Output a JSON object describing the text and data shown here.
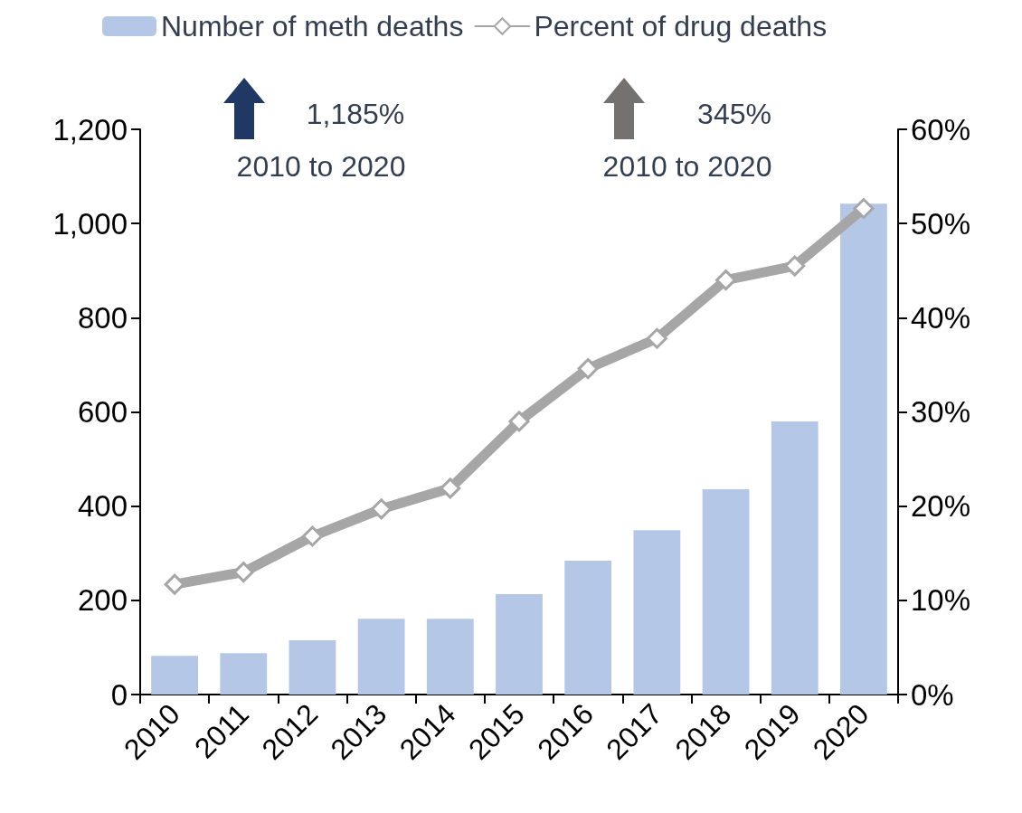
{
  "chart_data": {
    "type": "bar",
    "categories": [
      "2010",
      "2011",
      "2012",
      "2013",
      "2014",
      "2015",
      "2016",
      "2017",
      "2018",
      "2019",
      "2020"
    ],
    "series": [
      {
        "name": "Number of meth deaths",
        "color": "#b4c7e7",
        "values": [
          82,
          88,
          115,
          161,
          161,
          213,
          284,
          349,
          436,
          580,
          1042
        ]
      },
      {
        "name": "Percent of drug deaths",
        "type": "line",
        "axis": "y2",
        "color": "#a6a6a6",
        "marker": "diamond",
        "values": [
          11.7,
          13.0,
          16.8,
          19.7,
          21.9,
          29.0,
          34.6,
          37.8,
          44.0,
          45.5,
          51.6
        ]
      }
    ],
    "ylim": [
      0,
      1200
    ],
    "yticks": [
      {
        "value": 0,
        "label": "0"
      },
      {
        "value": 200,
        "label": "200"
      },
      {
        "value": 400,
        "label": "400"
      },
      {
        "value": 600,
        "label": "600"
      },
      {
        "value": 800,
        "label": "800"
      },
      {
        "value": 1000,
        "label": "1,000"
      },
      {
        "value": 1200,
        "label": "1,200"
      }
    ],
    "y2lim": [
      0,
      60
    ],
    "y2ticks": [
      {
        "value": 0,
        "label": "0%"
      },
      {
        "value": 10,
        "label": "10%"
      },
      {
        "value": 20,
        "label": "20%"
      },
      {
        "value": 30,
        "label": "30%"
      },
      {
        "value": 40,
        "label": "40%"
      },
      {
        "value": 50,
        "label": "50%"
      },
      {
        "value": 60,
        "label": "60%"
      }
    ],
    "annotations": [
      "1,185%",
      "2010 to 2020",
      "345%",
      "2010 to 2020"
    ],
    "legend": "top",
    "grid": false
  }
}
